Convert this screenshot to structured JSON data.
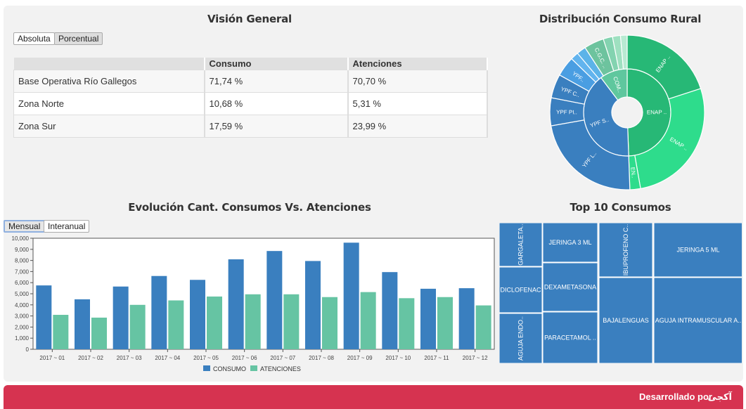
{
  "overview": {
    "title": "Visión General",
    "btn_absolute": "Absoluta",
    "btn_percent": "Porcentual",
    "columns": [
      "",
      "Consumo",
      "Atenciones"
    ],
    "rows": [
      [
        "Base Operativa Río Gallegos",
        "71,74 %",
        "70,70 %"
      ],
      [
        "Zona Norte",
        "10,68 %",
        "5,31 %"
      ],
      [
        "Zona Sur",
        "17,59 %",
        "23,99 %"
      ]
    ]
  },
  "sunburst": {
    "title": "Distribución Consumo Rural",
    "inner_labels": [
      "ENAP ..",
      "YPF S..",
      "COM.."
    ],
    "outer_labels": [
      "ENAP ..",
      "ENAP ..",
      "EN..",
      "YPF L..",
      "YPF PI..",
      "YPF C..",
      "YPF..",
      "C.G.C. .."
    ],
    "colors": {
      "green": "#27b876",
      "green_light": "#2edc8c",
      "blue": "#3a7fbf",
      "blue_light": "#4a9ee2",
      "teal": "#5fc79e"
    }
  },
  "evolution": {
    "title": "Evolución Cant. Consumos Vs. Atenciones",
    "btn_monthly": "Mensual",
    "btn_yearly": "Interanual"
  },
  "chart_data": {
    "type": "bar",
    "title": "Evolución Cant. Consumos Vs. Atenciones",
    "categories": [
      "2017 ~ 01",
      "2017 ~ 02",
      "2017 ~ 03",
      "2017 ~ 04",
      "2017 ~ 05",
      "2017 ~ 06",
      "2017 ~ 07",
      "2017 ~ 08",
      "2017 ~ 09",
      "2017 ~ 10",
      "2017 ~ 11",
      "2017 ~ 12"
    ],
    "series": [
      {
        "name": "CONSUMO",
        "color": "#3a7fbf",
        "values": [
          5750,
          4500,
          5650,
          6600,
          6250,
          8100,
          8850,
          7950,
          9600,
          6950,
          5450,
          5500
        ]
      },
      {
        "name": "ATENCIONES",
        "color": "#66c4a3",
        "values": [
          3100,
          2850,
          4000,
          4400,
          4750,
          4950,
          4950,
          4700,
          5150,
          4600,
          4700,
          3950
        ]
      }
    ],
    "yticks": [
      "0",
      "1,000",
      "2,000",
      "3,000",
      "4,000",
      "5,000",
      "6,000",
      "7,000",
      "8,000",
      "9,000",
      "10,000"
    ],
    "ylim": [
      0,
      10000
    ],
    "legend": "bottom-center"
  },
  "treemap": {
    "title": "Top 10 Consumos",
    "items": [
      "GARGALETA..",
      "JERINGA 3 ML",
      "IBUPROFENO C..",
      "JERINGA 5 ML",
      "DICLOFENAC",
      "DEXAMETASONA",
      "BAJALENGUAS",
      "AGUJA INTRAMUSCULAR A..",
      "AGUJA ENDO..",
      "PARACETAMOL .."
    ],
    "color": "#3a7fbf"
  },
  "footer": {
    "text": "Desarrollado por",
    "logo": "آکجی"
  }
}
